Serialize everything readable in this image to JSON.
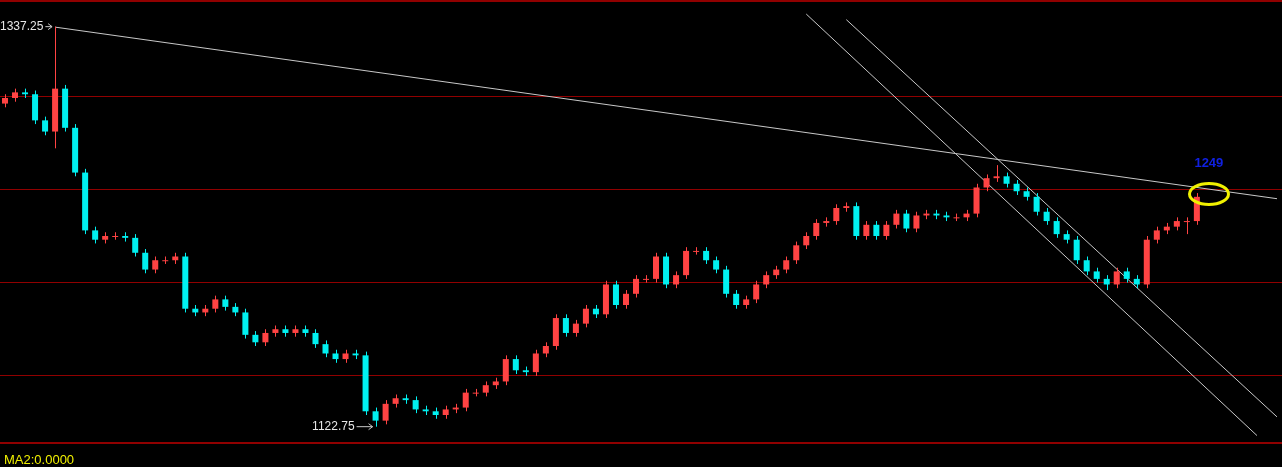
{
  "chart_data": {
    "type": "candlestick",
    "categories": [
      null,
      null,
      null,
      null,
      null,
      null,
      null,
      null,
      null,
      null,
      null,
      null,
      null,
      null,
      null,
      null,
      null,
      null,
      null,
      null,
      null,
      null,
      null,
      null,
      null,
      null,
      null,
      null,
      null,
      null,
      null,
      null,
      null,
      null,
      null,
      null,
      null,
      null,
      null,
      null,
      null,
      null,
      null,
      null,
      null,
      null,
      null,
      null,
      null,
      null,
      null,
      null,
      null,
      null,
      null,
      null,
      null,
      null,
      null,
      null,
      null,
      null,
      null,
      null,
      null,
      null,
      null,
      null,
      null,
      null,
      null,
      null,
      null,
      null,
      null,
      null,
      null,
      null,
      null,
      null,
      null,
      null,
      null,
      null,
      null,
      null,
      null,
      null,
      null,
      null,
      null,
      null,
      null,
      null,
      null,
      null,
      null,
      null,
      null,
      null,
      null,
      null,
      null,
      null,
      null,
      null,
      null,
      null,
      null,
      null,
      null,
      null,
      null,
      null,
      null,
      null,
      null,
      null,
      null,
      null,
      null,
      null,
      null,
      null,
      null,
      null,
      null,
      null
    ],
    "series": [
      {
        "colors": [
          "#ff4343",
          "#ff4343",
          "#00f0f0",
          "#00f0f0",
          "#00f0f0",
          "#ff4343",
          "#00f0f0",
          "#00f0f0",
          "#00f0f0",
          "#00f0f0",
          "#ff4343",
          "#ff4343",
          "#00f0f0",
          "#00f0f0",
          "#00f0f0",
          "#ff4343",
          "#ff4343",
          "#ff4343",
          "#00f0f0",
          "#00f0f0",
          "#ff4343",
          "#ff4343",
          "#00f0f0",
          "#00f0f0",
          "#00f0f0",
          "#00f0f0",
          "#ff4343",
          "#ff4343",
          "#00f0f0",
          "#ff4343",
          "#00f0f0",
          "#00f0f0",
          "#00f0f0",
          "#00f0f0",
          "#ff4343",
          "#00f0f0",
          "#00f0f0",
          "#00f0f0",
          "#ff4343",
          "#ff4343",
          "#00f0f0",
          "#00f0f0",
          "#00f0f0",
          "#00f0f0",
          "#ff4343",
          "#ff4343",
          "#ff4343",
          "#ff4343",
          "#ff4343",
          "#ff4343",
          "#ff4343",
          "#00f0f0",
          "#00f0f0",
          "#ff4343",
          "#ff4343",
          "#ff4343",
          "#00f0f0",
          "#ff4343",
          "#ff4343",
          "#00f0f0",
          "#ff4343",
          "#00f0f0",
          "#ff4343",
          "#ff4343",
          "#ff4343",
          "#ff4343",
          "#00f0f0",
          "#ff4343",
          "#ff4343",
          "#ff4343",
          "#00f0f0",
          "#00f0f0",
          "#00f0f0",
          "#00f0f0",
          "#ff4343",
          "#ff4343",
          "#ff4343",
          "#ff4343",
          "#ff4343",
          "#ff4343",
          "#ff4343",
          "#ff4343",
          "#ff4343",
          "#ff4343",
          "#ff4343",
          "#00f0f0",
          "#ff4343",
          "#00f0f0",
          "#ff4343",
          "#ff4343",
          "#00f0f0",
          "#ff4343",
          "#ff4343",
          "#00f0f0",
          "#00f0f0",
          "#ff4343",
          "#ff4343",
          "#ff4343",
          "#ff4343",
          "#ff4343",
          "#00f0f0",
          "#00f0f0",
          "#00f0f0",
          "#00f0f0",
          "#00f0f0",
          "#00f0f0",
          "#00f0f0",
          "#00f0f0",
          "#00f0f0",
          "#00f0f0",
          "#00f0f0",
          "#ff4343",
          "#00f0f0",
          "#00f0f0",
          "#ff4343",
          "#ff4343",
          "#ff4343",
          "#ff4343",
          "#ff4343",
          "#ff4343",
          null,
          null,
          null,
          null,
          null,
          null,
          null,
          null
        ],
        "ohlc": [
          [
            1296,
            1301,
            1294,
            1299
          ],
          [
            1299,
            1304,
            1297,
            1302
          ],
          [
            1302,
            1304,
            1299,
            1301
          ],
          [
            1301,
            1303,
            1285,
            1287
          ],
          [
            1287,
            1289,
            1279,
            1281
          ],
          [
            1281,
            1337.25,
            1272,
            1304
          ],
          [
            1304,
            1306,
            1281,
            1283
          ],
          [
            1283,
            1285,
            1257,
            1259
          ],
          [
            1259,
            1261,
            1226,
            1228
          ],
          [
            1228,
            1230,
            1221,
            1223
          ],
          [
            1223,
            1227,
            1221,
            1225
          ],
          [
            1225,
            1227,
            1223,
            1225
          ],
          [
            1225,
            1227,
            1222,
            1224
          ],
          [
            1224,
            1226,
            1214,
            1216
          ],
          [
            1216,
            1218,
            1205,
            1207
          ],
          [
            1207,
            1214,
            1205,
            1212
          ],
          [
            1212,
            1214,
            1210,
            1212
          ],
          [
            1212,
            1216,
            1210,
            1214
          ],
          [
            1214,
            1216,
            1184,
            1186
          ],
          [
            1186,
            1188,
            1182,
            1184
          ],
          [
            1184,
            1188,
            1182,
            1186
          ],
          [
            1186,
            1193,
            1184,
            1191
          ],
          [
            1191,
            1193,
            1185,
            1187
          ],
          [
            1187,
            1189,
            1182,
            1184
          ],
          [
            1184,
            1186,
            1170,
            1172
          ],
          [
            1172,
            1174,
            1166,
            1168
          ],
          [
            1168,
            1175,
            1166,
            1173
          ],
          [
            1173,
            1177,
            1171,
            1175
          ],
          [
            1175,
            1177,
            1171,
            1173
          ],
          [
            1173,
            1177,
            1171,
            1175
          ],
          [
            1175,
            1177,
            1171,
            1173
          ],
          [
            1173,
            1175,
            1165,
            1167
          ],
          [
            1167,
            1169,
            1160,
            1162
          ],
          [
            1162,
            1164,
            1157,
            1159
          ],
          [
            1159,
            1164,
            1157,
            1162
          ],
          [
            1162,
            1164,
            1159,
            1161
          ],
          [
            1161,
            1163,
            1129,
            1131
          ],
          [
            1131,
            1133,
            1122.75,
            1126
          ],
          [
            1126,
            1137,
            1124,
            1135
          ],
          [
            1135,
            1140,
            1133,
            1138
          ],
          [
            1138,
            1140,
            1135,
            1137
          ],
          [
            1137,
            1139,
            1130,
            1132
          ],
          [
            1132,
            1134,
            1129,
            1131
          ],
          [
            1131,
            1133,
            1127,
            1129
          ],
          [
            1129,
            1134,
            1127,
            1132
          ],
          [
            1132,
            1135,
            1130,
            1133
          ],
          [
            1133,
            1143,
            1131,
            1141
          ],
          [
            1141,
            1143,
            1139,
            1141
          ],
          [
            1141,
            1147,
            1139,
            1145
          ],
          [
            1145,
            1149,
            1143,
            1147
          ],
          [
            1147,
            1161,
            1145,
            1159
          ],
          [
            1159,
            1161,
            1151,
            1153
          ],
          [
            1153,
            1155,
            1150,
            1152
          ],
          [
            1152,
            1164,
            1150,
            1162
          ],
          [
            1162,
            1168,
            1160,
            1166
          ],
          [
            1166,
            1183,
            1164,
            1181
          ],
          [
            1181,
            1183,
            1171,
            1173
          ],
          [
            1173,
            1180,
            1171,
            1178
          ],
          [
            1178,
            1188,
            1176,
            1186
          ],
          [
            1186,
            1188,
            1181,
            1183
          ],
          [
            1183,
            1201,
            1181,
            1199
          ],
          [
            1199,
            1201,
            1186,
            1188
          ],
          [
            1188,
            1196,
            1186,
            1194
          ],
          [
            1194,
            1204,
            1192,
            1202
          ],
          [
            1202,
            1204,
            1200,
            1202
          ],
          [
            1202,
            1216,
            1200,
            1214
          ],
          [
            1214,
            1216,
            1197,
            1199
          ],
          [
            1199,
            1206,
            1197,
            1204
          ],
          [
            1204,
            1219,
            1202,
            1217
          ],
          [
            1217,
            1219,
            1215,
            1217
          ],
          [
            1217,
            1219,
            1210,
            1212
          ],
          [
            1212,
            1214,
            1205,
            1207
          ],
          [
            1207,
            1209,
            1192,
            1194
          ],
          [
            1194,
            1196,
            1186,
            1188
          ],
          [
            1188,
            1193,
            1186,
            1191
          ],
          [
            1191,
            1201,
            1189,
            1199
          ],
          [
            1199,
            1206,
            1197,
            1204
          ],
          [
            1204,
            1209,
            1202,
            1207
          ],
          [
            1207,
            1214,
            1205,
            1212
          ],
          [
            1212,
            1222,
            1210,
            1220
          ],
          [
            1220,
            1227,
            1218,
            1225
          ],
          [
            1225,
            1234,
            1223,
            1232
          ],
          [
            1232,
            1235,
            1230,
            1233
          ],
          [
            1233,
            1242,
            1231,
            1240
          ],
          [
            1240,
            1243,
            1238,
            1241
          ],
          [
            1241,
            1243,
            1223,
            1225
          ],
          [
            1225,
            1233,
            1223,
            1231
          ],
          [
            1231,
            1233,
            1223,
            1225
          ],
          [
            1225,
            1233,
            1223,
            1231
          ],
          [
            1231,
            1239,
            1229,
            1237
          ],
          [
            1237,
            1239,
            1227,
            1229
          ],
          [
            1229,
            1238,
            1227,
            1236
          ],
          [
            1236,
            1239,
            1234,
            1237
          ],
          [
            1237,
            1239,
            1234,
            1236
          ],
          [
            1236,
            1238,
            1233,
            1235
          ],
          [
            1235,
            1237,
            1233,
            1235
          ],
          [
            1235,
            1239,
            1233,
            1237
          ],
          [
            1237,
            1253,
            1235,
            1251
          ],
          [
            1251,
            1258,
            1249,
            1256
          ],
          [
            1256,
            1263,
            1254,
            1257
          ],
          [
            1257,
            1259,
            1251,
            1253
          ],
          [
            1253,
            1255,
            1247,
            1249
          ],
          [
            1249,
            1251,
            1244,
            1246
          ],
          [
            1246,
            1248,
            1236,
            1238
          ],
          [
            1238,
            1240,
            1231,
            1233
          ],
          [
            1233,
            1235,
            1224,
            1226
          ],
          [
            1226,
            1228,
            1221,
            1223
          ],
          [
            1223,
            1225,
            1210,
            1212
          ],
          [
            1212,
            1214,
            1204,
            1206
          ],
          [
            1206,
            1208,
            1200,
            1202
          ],
          [
            1202,
            1204,
            1196,
            1199
          ],
          [
            1199,
            1208,
            1197,
            1206
          ],
          [
            1206,
            1208,
            1200,
            1202
          ],
          [
            1202,
            1204,
            1197,
            1199
          ],
          [
            1199,
            1225,
            1197,
            1223
          ],
          [
            1223,
            1230,
            1221,
            1228
          ],
          [
            1228,
            1232,
            1226,
            1230
          ],
          [
            1230,
            1235,
            1228,
            1233
          ],
          [
            1233,
            1235,
            1226,
            1233
          ],
          [
            1233,
            1248,
            1231,
            1246
          ],
          null,
          null,
          null,
          null,
          null,
          null,
          null,
          null
        ]
      },
      {
        "type": "line",
        "color": "#c8c8c8",
        "values": [
          null,
          null,
          null,
          null,
          null,
          1337,
          null,
          null,
          null,
          null,
          null,
          null,
          null,
          null,
          null,
          null,
          null,
          null,
          null,
          null,
          null,
          null,
          null,
          null,
          null,
          null,
          null,
          null,
          null,
          null,
          null,
          null,
          null,
          null,
          null,
          null,
          null,
          null,
          null,
          null,
          null,
          null,
          null,
          null,
          null,
          null,
          null,
          null,
          null,
          null,
          null,
          null,
          null,
          null,
          null,
          null,
          null,
          null,
          null,
          null,
          null,
          null,
          null,
          null,
          null,
          null,
          null,
          null,
          null,
          null,
          null,
          null,
          null,
          null,
          null,
          null,
          null,
          null,
          null,
          null,
          null,
          null,
          null,
          null,
          null,
          null,
          null,
          null,
          null,
          null,
          null,
          null,
          null,
          null,
          null,
          null,
          null,
          null,
          null,
          null,
          null,
          null,
          null,
          null,
          null,
          null,
          null,
          null,
          null,
          null,
          null,
          null,
          null,
          null,
          null,
          null,
          null,
          null,
          null,
          null,
          null,
          null,
          null,
          null,
          null,
          null,
          null,
          1245
        ]
      },
      {
        "type": "line",
        "color": "#c8c8c8",
        "values": [
          null,
          null,
          null,
          null,
          null,
          null,
          null,
          null,
          null,
          null,
          null,
          null,
          null,
          null,
          null,
          null,
          null,
          null,
          null,
          null,
          null,
          null,
          null,
          null,
          null,
          null,
          null,
          null,
          null,
          null,
          null,
          null,
          null,
          null,
          null,
          null,
          null,
          null,
          null,
          null,
          null,
          null,
          null,
          null,
          null,
          null,
          null,
          null,
          null,
          null,
          null,
          null,
          null,
          null,
          null,
          null,
          null,
          null,
          null,
          null,
          null,
          null,
          null,
          null,
          null,
          null,
          null,
          null,
          null,
          null,
          null,
          null,
          null,
          null,
          null,
          null,
          null,
          null,
          null,
          null,
          null,
          null,
          null,
          null,
          1341,
          null,
          null,
          null,
          null,
          null,
          null,
          null,
          null,
          null,
          null,
          null,
          null,
          null,
          null,
          null,
          null,
          null,
          null,
          null,
          null,
          null,
          null,
          null,
          null,
          null,
          null,
          null,
          null,
          null,
          null,
          null,
          null,
          null,
          null,
          null,
          null,
          null,
          null,
          null,
          null,
          null,
          null,
          1128
        ]
      },
      {
        "type": "line",
        "color": "#c8c8c8",
        "values": [
          null,
          null,
          null,
          null,
          null,
          null,
          null,
          null,
          null,
          null,
          null,
          null,
          null,
          null,
          null,
          null,
          null,
          null,
          null,
          null,
          null,
          null,
          null,
          null,
          null,
          null,
          null,
          null,
          null,
          null,
          null,
          null,
          null,
          null,
          null,
          null,
          null,
          null,
          null,
          null,
          null,
          null,
          null,
          null,
          null,
          null,
          null,
          null,
          null,
          null,
          null,
          null,
          null,
          null,
          null,
          null,
          null,
          null,
          null,
          null,
          null,
          null,
          null,
          null,
          null,
          null,
          null,
          null,
          null,
          null,
          null,
          null,
          null,
          null,
          null,
          null,
          null,
          null,
          null,
          null,
          1344,
          null,
          null,
          null,
          null,
          null,
          null,
          null,
          null,
          null,
          null,
          null,
          null,
          null,
          null,
          null,
          null,
          null,
          null,
          null,
          null,
          null,
          null,
          null,
          null,
          null,
          null,
          null,
          null,
          null,
          null,
          null,
          null,
          null,
          null,
          null,
          null,
          null,
          null,
          null,
          null,
          null,
          null,
          null,
          null,
          1118,
          null,
          null
        ]
      }
    ],
    "ylim": [
      1114,
      1351
    ],
    "yticks": [
      1150,
      1200,
      1250,
      1300
    ],
    "grid": "y",
    "tick_labels": false,
    "annotations": [
      "1337.25",
      "1122.75",
      "1249",
      "MA2:0.0000"
    ]
  }
}
